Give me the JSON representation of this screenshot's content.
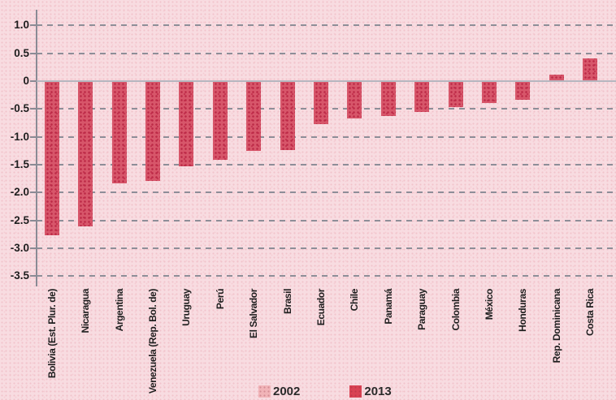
{
  "chart_data": {
    "type": "bar",
    "categories": [
      "Bolivia (Est. Plur. de)",
      "Nicaragua",
      "Argentina",
      "Venezuela (Rep. Bol. de)",
      "Uruguay",
      "Perú",
      "El Salvador",
      "Brasil",
      "Ecuador",
      "Chile",
      "Panamá",
      "Paraguay",
      "Colombia",
      "México",
      "Honduras",
      "Rep. Dominicana",
      "Costa Rica"
    ],
    "series": [
      {
        "name": "2013",
        "color": "#d7566a",
        "values": [
          -2.77,
          -2.6,
          -1.83,
          -1.79,
          -1.53,
          -1.41,
          -1.25,
          -1.23,
          -0.77,
          -0.67,
          -0.63,
          -0.56,
          -0.47,
          -0.4,
          -0.33,
          0.11,
          0.41
        ]
      }
    ],
    "legend": [
      {
        "label": "2002",
        "color": "#f1b4b8"
      },
      {
        "label": "2013",
        "color": "#d94253"
      }
    ],
    "title": "",
    "xlabel": "",
    "ylabel": "",
    "ylim": [
      -3.5,
      1.0
    ],
    "ytick_step": 0.5,
    "yticks": [
      "1.0",
      "0.5",
      "0",
      "-0.5",
      "-1.0",
      "-1.5",
      "-2.0",
      "-2.5",
      "-3.0",
      "-3.5"
    ],
    "grid": "horizontal-dashed",
    "legend_position": "bottom-center",
    "colors": {
      "background": "#f8dce1",
      "bar_fill": "#d7566a",
      "bar_dots": "#bb2845",
      "gridline": "#8e8e98",
      "zero_line": "#b6b6bf",
      "text": "#1e1e1e"
    }
  }
}
